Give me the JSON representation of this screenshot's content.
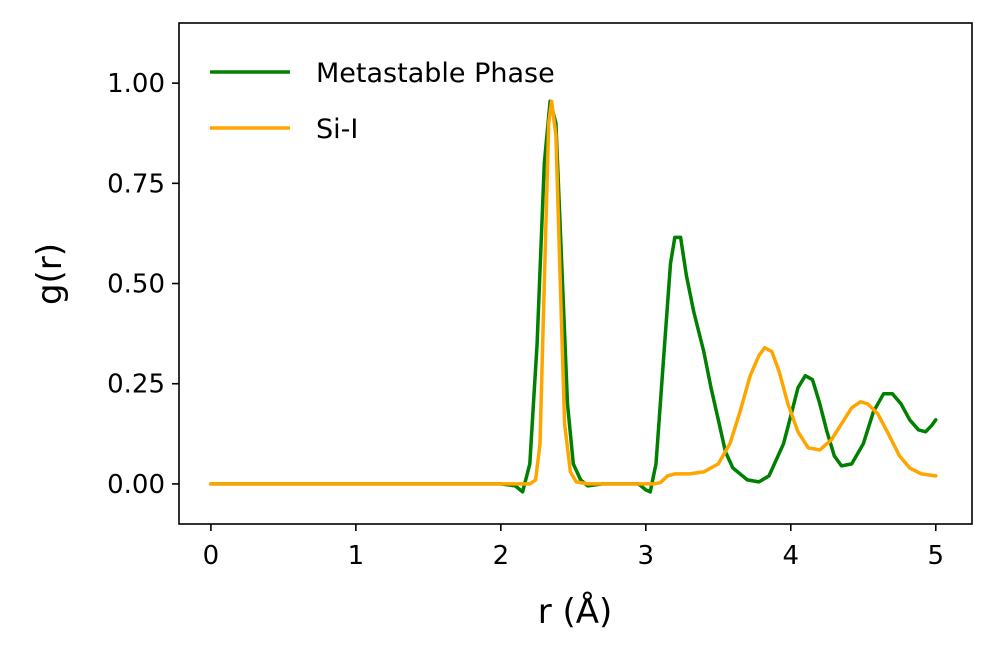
{
  "chart_data": {
    "type": "line",
    "title": "",
    "xlabel": "r (Å)",
    "ylabel": "g(r)",
    "xlim": [
      -0.22,
      5.25
    ],
    "ylim": [
      -0.1,
      1.15
    ],
    "xticks": [
      0,
      1,
      2,
      3,
      4,
      5
    ],
    "xtick_labels": [
      "0",
      "1",
      "2",
      "3",
      "4",
      "5"
    ],
    "yticks": [
      0.0,
      0.25,
      0.5,
      0.75,
      1.0
    ],
    "ytick_labels": [
      "0.00",
      "0.25",
      "0.50",
      "0.75",
      "1.00"
    ],
    "legend_position": "top-left",
    "grid": false,
    "series": [
      {
        "name": "Metastable Phase",
        "color": "#008000",
        "points": [
          [
            0.0,
            0.0
          ],
          [
            2.0,
            0.0
          ],
          [
            2.1,
            -0.005
          ],
          [
            2.15,
            -0.02
          ],
          [
            2.2,
            0.05
          ],
          [
            2.25,
            0.35
          ],
          [
            2.3,
            0.8
          ],
          [
            2.34,
            0.955
          ],
          [
            2.38,
            0.9
          ],
          [
            2.42,
            0.55
          ],
          [
            2.46,
            0.2
          ],
          [
            2.5,
            0.05
          ],
          [
            2.55,
            0.01
          ],
          [
            2.6,
            -0.005
          ],
          [
            2.7,
            0.0
          ],
          [
            2.95,
            0.0
          ],
          [
            3.0,
            -0.015
          ],
          [
            3.03,
            -0.02
          ],
          [
            3.07,
            0.05
          ],
          [
            3.12,
            0.3
          ],
          [
            3.17,
            0.55
          ],
          [
            3.2,
            0.615
          ],
          [
            3.24,
            0.615
          ],
          [
            3.28,
            0.52
          ],
          [
            3.33,
            0.43
          ],
          [
            3.4,
            0.33
          ],
          [
            3.45,
            0.24
          ],
          [
            3.5,
            0.16
          ],
          [
            3.55,
            0.08
          ],
          [
            3.6,
            0.04
          ],
          [
            3.7,
            0.01
          ],
          [
            3.78,
            0.005
          ],
          [
            3.85,
            0.02
          ],
          [
            3.95,
            0.1
          ],
          [
            4.0,
            0.17
          ],
          [
            4.05,
            0.24
          ],
          [
            4.1,
            0.27
          ],
          [
            4.15,
            0.26
          ],
          [
            4.2,
            0.2
          ],
          [
            4.25,
            0.13
          ],
          [
            4.3,
            0.07
          ],
          [
            4.35,
            0.045
          ],
          [
            4.42,
            0.05
          ],
          [
            4.5,
            0.1
          ],
          [
            4.57,
            0.18
          ],
          [
            4.64,
            0.225
          ],
          [
            4.7,
            0.225
          ],
          [
            4.76,
            0.2
          ],
          [
            4.82,
            0.16
          ],
          [
            4.88,
            0.135
          ],
          [
            4.93,
            0.13
          ],
          [
            4.97,
            0.145
          ],
          [
            5.0,
            0.16
          ]
        ]
      },
      {
        "name": "Si-I",
        "color": "#FFA500",
        "points": [
          [
            0.0,
            0.0
          ],
          [
            2.2,
            0.0
          ],
          [
            2.24,
            0.01
          ],
          [
            2.27,
            0.1
          ],
          [
            2.3,
            0.5
          ],
          [
            2.33,
            0.9
          ],
          [
            2.35,
            0.955
          ],
          [
            2.38,
            0.87
          ],
          [
            2.41,
            0.5
          ],
          [
            2.44,
            0.15
          ],
          [
            2.48,
            0.03
          ],
          [
            2.52,
            0.005
          ],
          [
            2.6,
            0.0
          ],
          [
            3.05,
            0.0
          ],
          [
            3.1,
            0.003
          ],
          [
            3.15,
            0.02
          ],
          [
            3.2,
            0.025
          ],
          [
            3.3,
            0.025
          ],
          [
            3.4,
            0.03
          ],
          [
            3.5,
            0.05
          ],
          [
            3.58,
            0.1
          ],
          [
            3.65,
            0.18
          ],
          [
            3.72,
            0.27
          ],
          [
            3.78,
            0.32
          ],
          [
            3.82,
            0.34
          ],
          [
            3.87,
            0.33
          ],
          [
            3.92,
            0.28
          ],
          [
            3.98,
            0.2
          ],
          [
            4.05,
            0.13
          ],
          [
            4.12,
            0.09
          ],
          [
            4.2,
            0.085
          ],
          [
            4.28,
            0.11
          ],
          [
            4.35,
            0.15
          ],
          [
            4.42,
            0.19
          ],
          [
            4.48,
            0.205
          ],
          [
            4.53,
            0.2
          ],
          [
            4.6,
            0.175
          ],
          [
            4.68,
            0.12
          ],
          [
            4.75,
            0.07
          ],
          [
            4.82,
            0.04
          ],
          [
            4.9,
            0.025
          ],
          [
            5.0,
            0.02
          ]
        ]
      }
    ]
  }
}
